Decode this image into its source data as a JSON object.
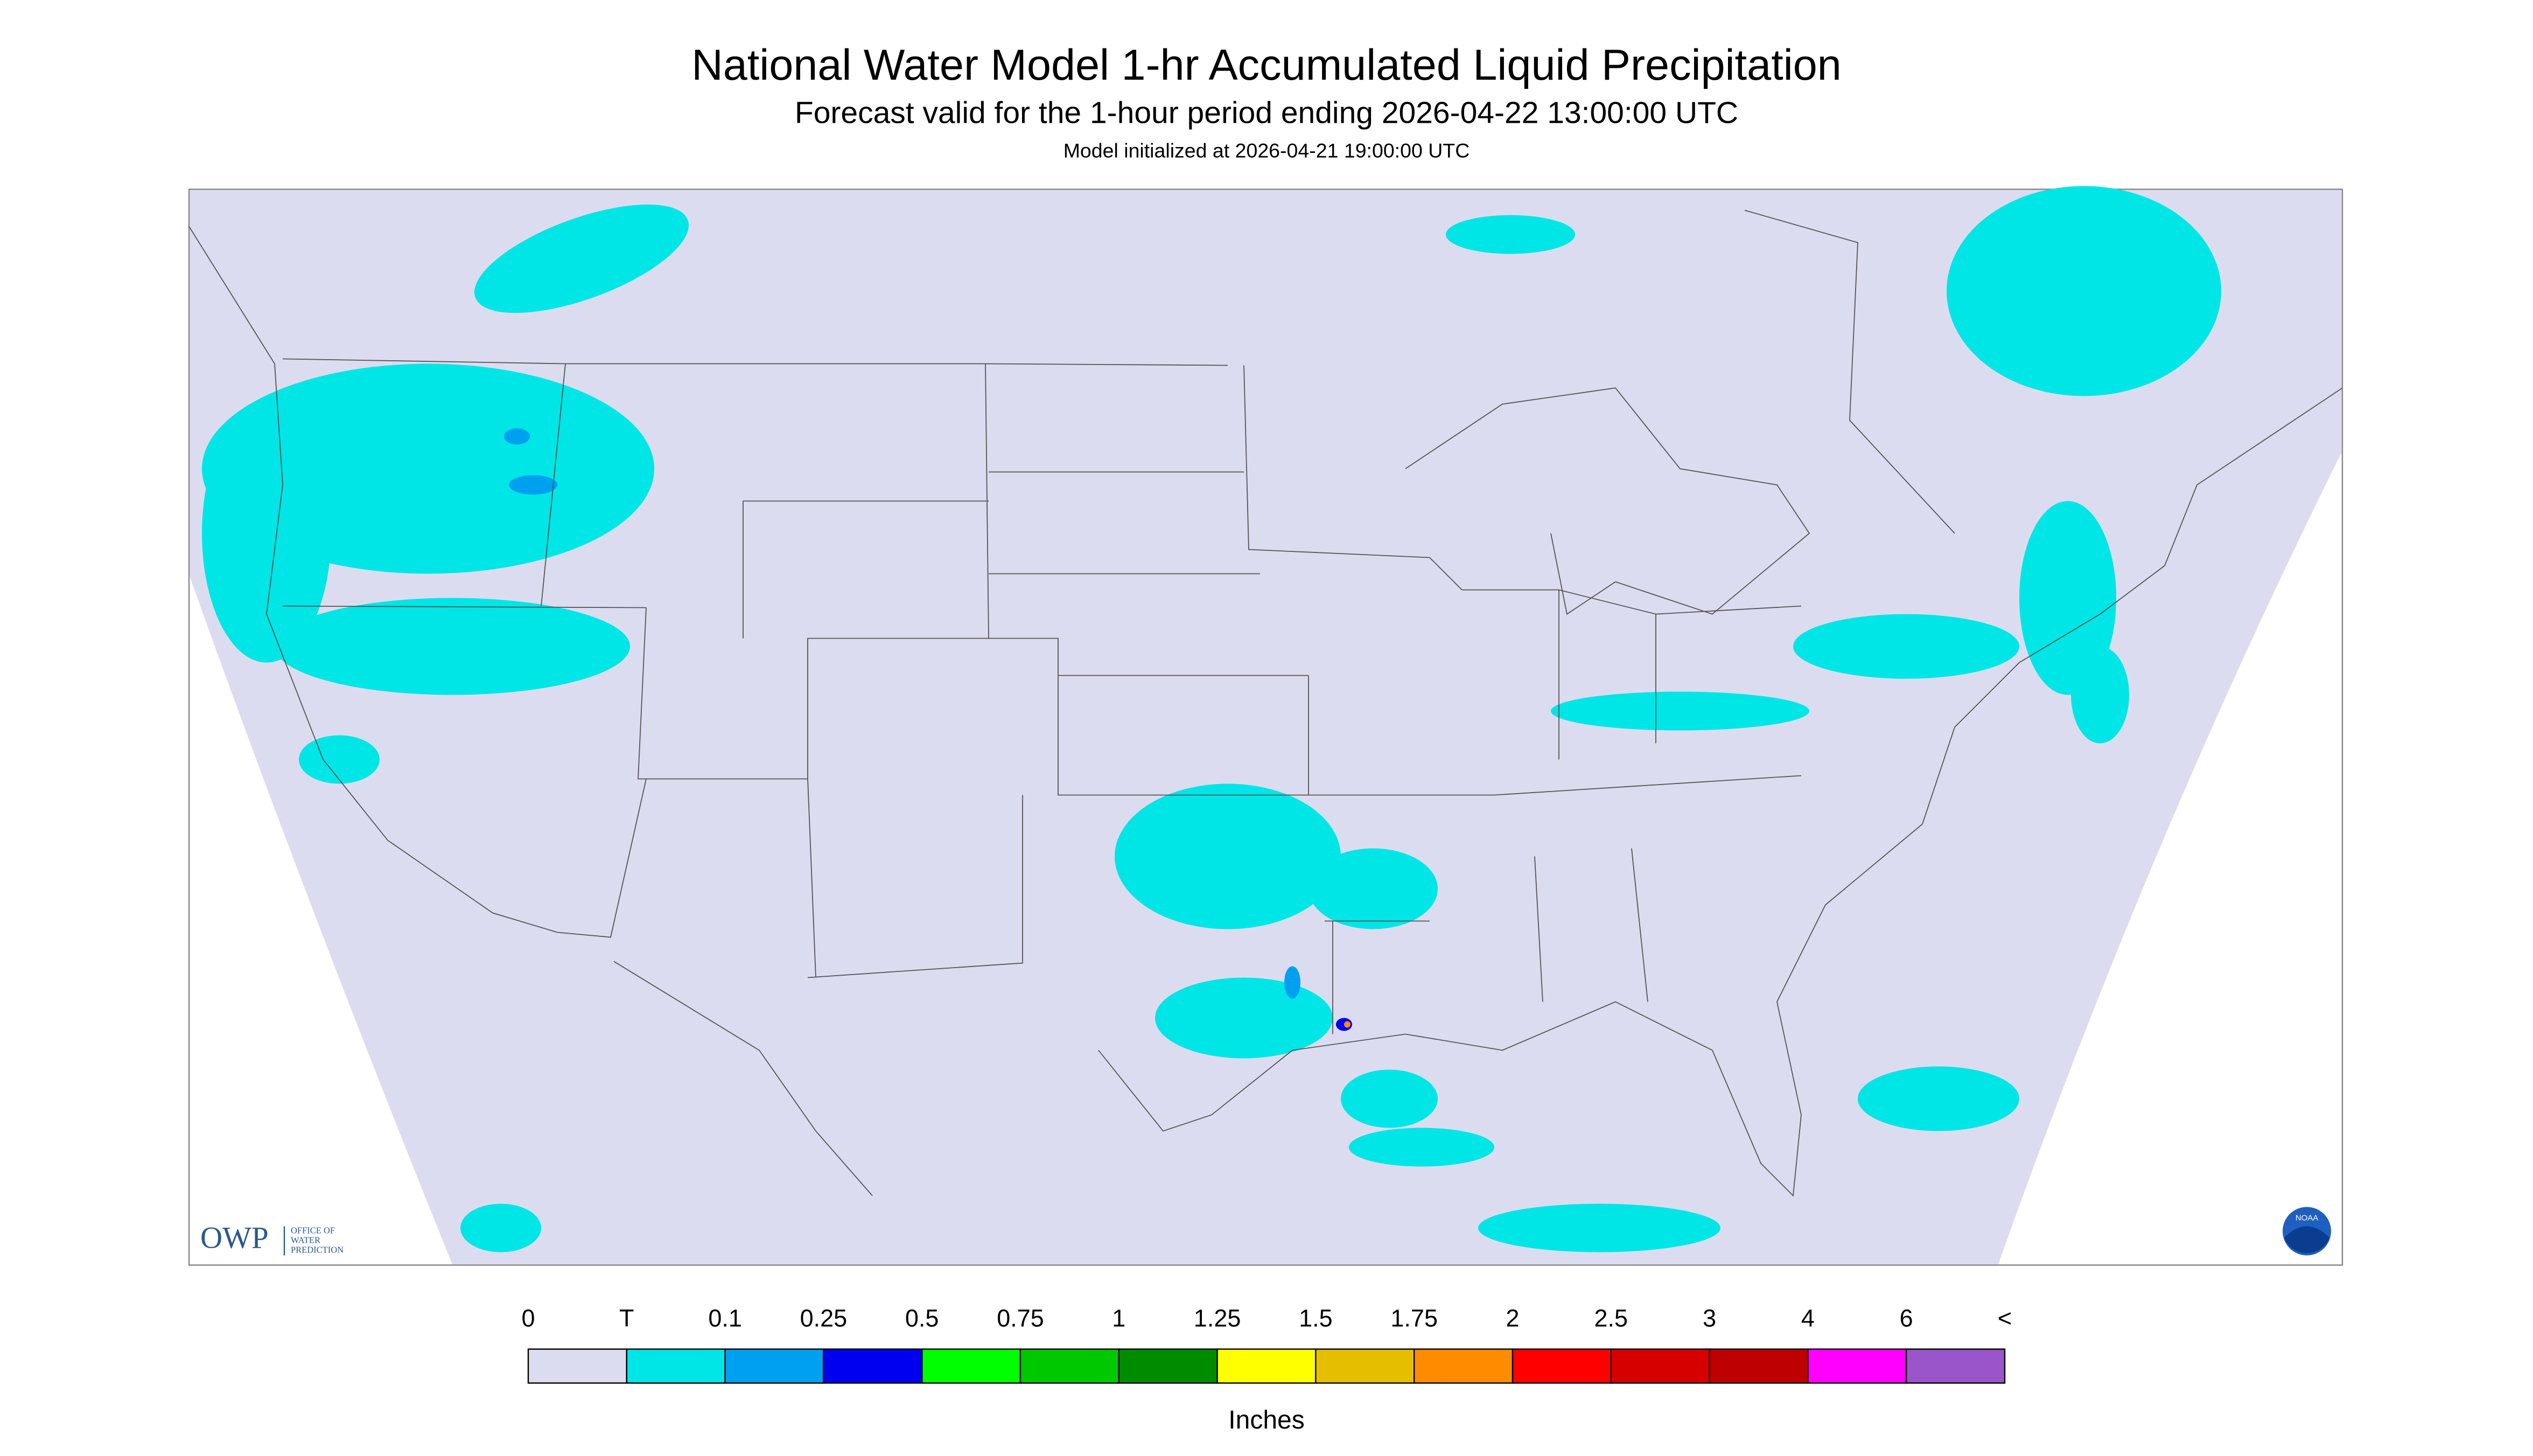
{
  "header": {
    "title": "National Water Model 1-hr Accumulated Liquid Precipitation",
    "subtitle": "Forecast valid for the 1-hour period ending 2026-04-22 13:00:00 UTC",
    "note": "Model initialized at 2026-04-21 19:00:00 UTC"
  },
  "logo": {
    "acronym": "OWP",
    "line1": "OFFICE OF",
    "line2": "WATER",
    "line3": "PREDICTION",
    "badge": "NOAA"
  },
  "legend": {
    "labels": [
      "0",
      "T",
      "0.1",
      "0.25",
      "0.5",
      "0.75",
      "1",
      "1.25",
      "1.5",
      "1.75",
      "2",
      "2.5",
      "3",
      "4",
      "6",
      "<"
    ],
    "colors": [
      "#dcdcf0",
      "#00e5e5",
      "#00a0f0",
      "#0000f0",
      "#00ff00",
      "#00c800",
      "#008c00",
      "#ffff00",
      "#e6be00",
      "#ff8c00",
      "#ff0000",
      "#d70000",
      "#be0000",
      "#ff00ff",
      "#9955c9"
    ],
    "unit": "Inches"
  }
}
